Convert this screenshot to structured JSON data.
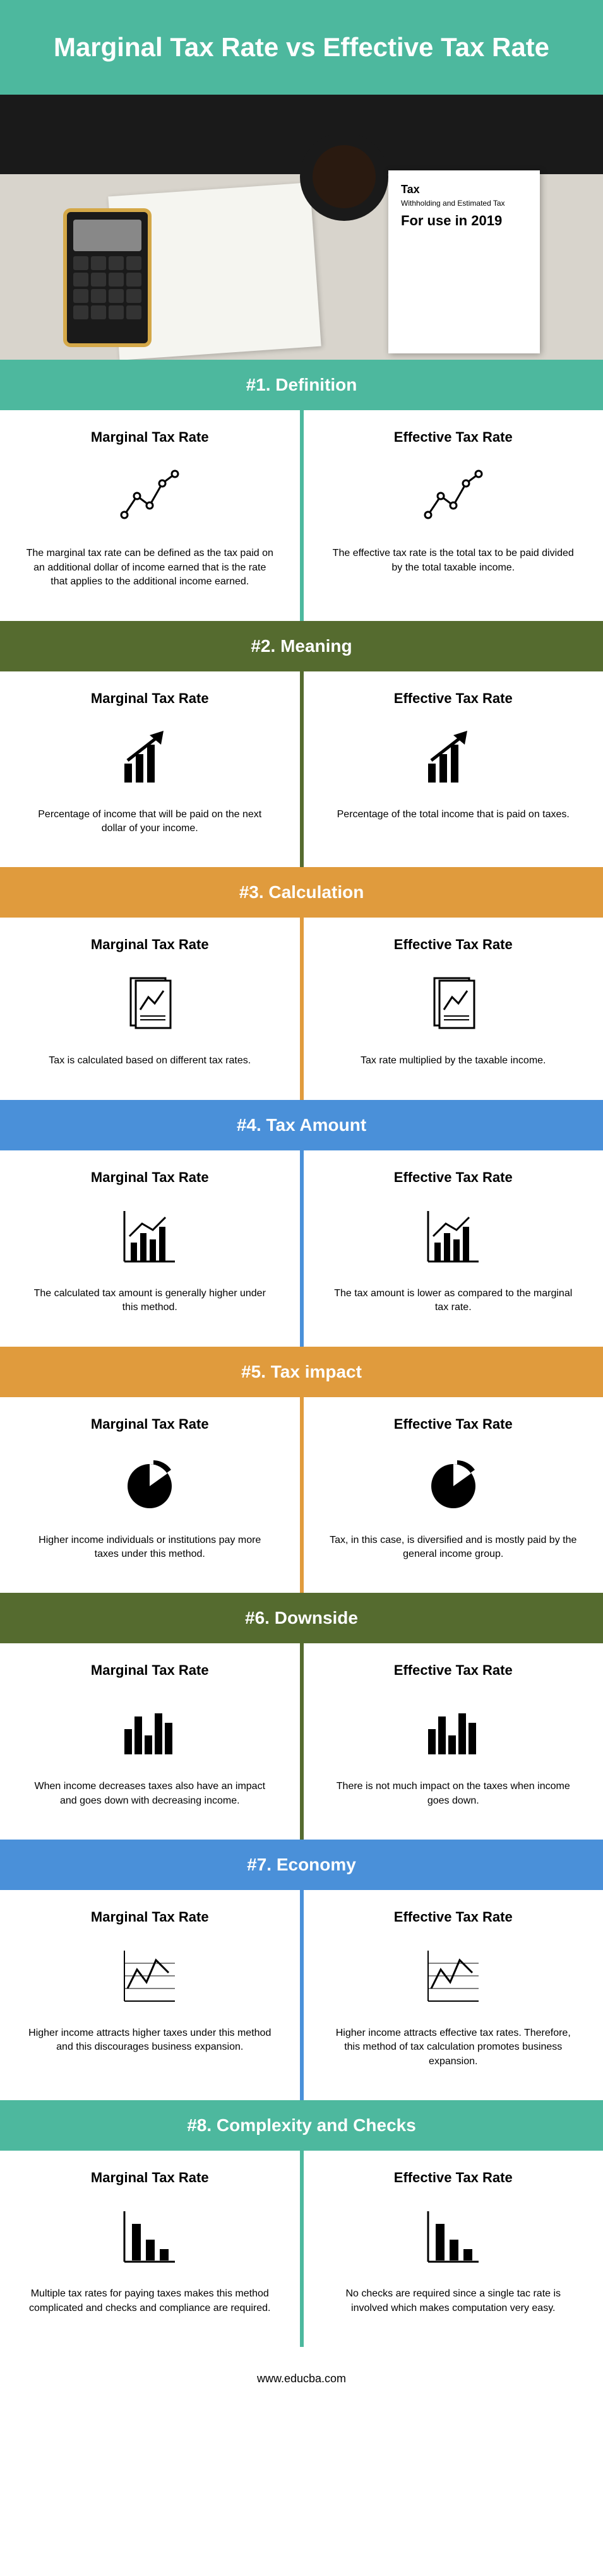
{
  "title": "Marginal Tax Rate vs Effective Tax Rate",
  "hero": {
    "doc_title": "Tax",
    "doc_sub": "Withholding and Estimated Tax",
    "doc_year": "For use in 2019"
  },
  "colors": {
    "header": "#4db89e",
    "teal": "#4db89e",
    "olive": "#556b2f",
    "orange": "#e09b3d",
    "blue": "#4a90d9"
  },
  "left_label": "Marginal Tax Rate",
  "right_label": "Effective Tax Rate",
  "sections": [
    {
      "num": "#1.",
      "title": "Definition",
      "banner_color": "#4db89e",
      "divider_color": "#4db89e",
      "icon": "line-chart-dots",
      "left": "The marginal tax rate can be defined as the tax paid on an additional dollar of income earned that is the rate that applies to the additional income earned.",
      "right": "The effective tax rate is the total tax to be paid divided by the total taxable income."
    },
    {
      "num": "#2.",
      "title": "Meaning",
      "banner_color": "#556b2f",
      "divider_color": "#556b2f",
      "icon": "growth-arrow",
      "left": "Percentage of income that will be paid on the next dollar of your income.",
      "right": "Percentage of the total income that is paid on taxes."
    },
    {
      "num": "#3.",
      "title": "Calculation",
      "banner_color": "#e09b3d",
      "divider_color": "#e09b3d",
      "icon": "document-chart",
      "left": "Tax is calculated based on different tax rates.",
      "right": "Tax rate multiplied by the taxable income."
    },
    {
      "num": "#4.",
      "title": "Tax Amount",
      "banner_color": "#4a90d9",
      "divider_color": "#4a90d9",
      "icon": "bar-line",
      "left": "The calculated tax amount is generally higher under this method.",
      "right": "The tax amount is lower as compared to the marginal tax rate."
    },
    {
      "num": "#5.",
      "title": "Tax impact",
      "banner_color": "#e09b3d",
      "divider_color": "#e09b3d",
      "icon": "pie",
      "left": "Higher income individuals or institutions pay more taxes under this method.",
      "right": "Tax, in this case, is diversified and is mostly paid by the general income group."
    },
    {
      "num": "#6.",
      "title": "Downside",
      "banner_color": "#556b2f",
      "divider_color": "#556b2f",
      "icon": "bars",
      "left": "When income decreases taxes also have an impact and goes down with decreasing income.",
      "right": "There is not much impact on the taxes when income goes down."
    },
    {
      "num": "#7.",
      "title": "Economy",
      "banner_color": "#4a90d9",
      "divider_color": "#4a90d9",
      "icon": "zigzag",
      "left": "Higher income attracts higher taxes under this method and this discourages business expansion.",
      "right": "Higher income attracts effective tax rates. Therefore, this method of tax calculation promotes business expansion."
    },
    {
      "num": "#8.",
      "title": "Complexity and Checks",
      "banner_color": "#4db89e",
      "divider_color": "#4db89e",
      "icon": "simple-bars",
      "left": "Multiple tax rates for paying taxes makes this method complicated and checks and compliance are required.",
      "right": "No checks are required since a single tac rate is involved which makes computation very easy."
    }
  ],
  "footer": "www.educba.com"
}
